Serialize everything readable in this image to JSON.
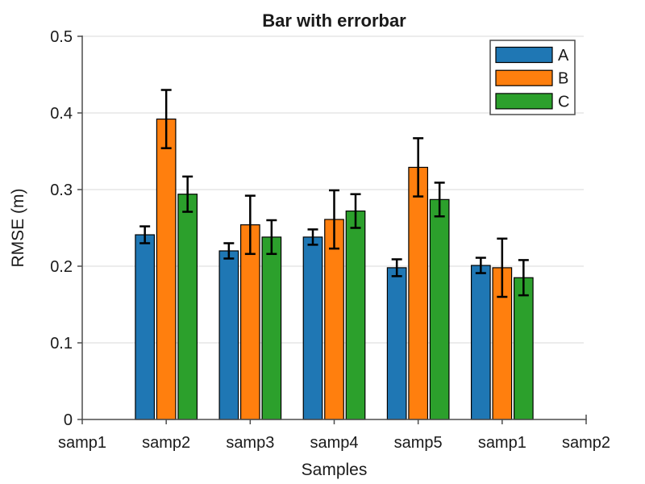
{
  "chart_data": {
    "type": "bar",
    "title": "Bar with errorbar",
    "xlabel": "Samples",
    "ylabel": "RMSE (m)",
    "categories": [
      "samp1",
      "samp2",
      "samp3",
      "samp4",
      "samp5",
      "samp1",
      "samp2"
    ],
    "series": [
      {
        "name": "A",
        "color": "#1f77b4",
        "values": [
          null,
          0.241,
          0.22,
          0.238,
          0.198,
          0.201,
          null
        ],
        "errors": [
          null,
          0.011,
          0.01,
          0.01,
          0.011,
          0.01,
          null
        ]
      },
      {
        "name": "B",
        "color": "#ff7f0e",
        "values": [
          null,
          0.392,
          0.254,
          0.261,
          0.329,
          0.198,
          null
        ],
        "errors": [
          null,
          0.038,
          0.038,
          0.038,
          0.038,
          0.038,
          null
        ]
      },
      {
        "name": "C",
        "color": "#2ca02c",
        "values": [
          null,
          0.294,
          0.238,
          0.272,
          0.287,
          0.185,
          null
        ],
        "errors": [
          null,
          0.023,
          0.022,
          0.022,
          0.022,
          0.023,
          null
        ]
      }
    ],
    "ylim": [
      0,
      0.5
    ],
    "yticks": [
      0,
      0.1,
      0.2,
      0.3,
      0.4,
      0.5
    ],
    "ytick_labels": [
      "0",
      "0.1",
      "0.2",
      "0.3",
      "0.4",
      "0.5"
    ],
    "grid": true,
    "legend_position": "top-right",
    "colors": {
      "background": "#ffffff",
      "grid": "#e6e6e6",
      "axis": "#4d4d4d",
      "text": "#1a1a1a",
      "bar_edge": "#000000",
      "errorbar": "#000000"
    }
  }
}
